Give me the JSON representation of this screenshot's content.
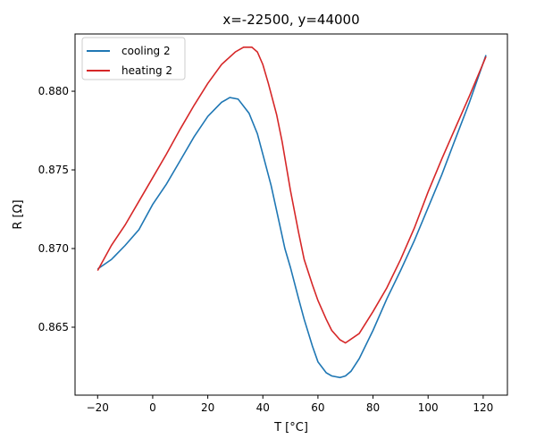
{
  "chart_data": {
    "type": "line",
    "title": "x=-22500, y=44000",
    "xlabel": "T [°C]",
    "ylabel": "R [Ω]",
    "xlim": [
      -28.2,
      128.8
    ],
    "ylim": [
      0.86068,
      0.88364
    ],
    "xticks": [
      -20,
      0,
      20,
      40,
      60,
      80,
      100,
      120
    ],
    "xtick_labels": [
      "−20",
      "0",
      "20",
      "40",
      "60",
      "80",
      "100",
      "120"
    ],
    "yticks": [
      0.865,
      0.87,
      0.875,
      0.88
    ],
    "ytick_labels": [
      "0.865",
      "0.870",
      "0.875",
      "0.880"
    ],
    "grid": false,
    "legend_position": "top-left",
    "series": [
      {
        "name": "cooling 2",
        "color": "#1f77b4",
        "x": [
          -20,
          -15,
          -10,
          -5,
          0,
          5,
          10,
          15,
          20,
          25,
          28,
          31,
          35,
          38,
          40,
          43,
          45,
          48,
          50,
          53,
          55,
          58,
          60,
          63,
          65,
          68,
          70,
          72,
          75,
          80,
          85,
          90,
          95,
          100,
          105,
          110,
          115,
          121
        ],
        "y": [
          0.8687,
          0.8693,
          0.8702,
          0.8712,
          0.8728,
          0.8741,
          0.8756,
          0.8771,
          0.8784,
          0.8793,
          0.8796,
          0.8795,
          0.8786,
          0.8773,
          0.876,
          0.874,
          0.8724,
          0.87,
          0.8688,
          0.8668,
          0.8655,
          0.8638,
          0.8628,
          0.8621,
          0.8619,
          0.8618,
          0.8619,
          0.8622,
          0.863,
          0.8648,
          0.8668,
          0.8686,
          0.8705,
          0.8726,
          0.8747,
          0.877,
          0.8793,
          0.8823
        ]
      },
      {
        "name": "heating 2",
        "color": "#d62728",
        "x": [
          -20,
          -15,
          -10,
          -5,
          0,
          5,
          10,
          15,
          20,
          25,
          30,
          33,
          36,
          38,
          40,
          42,
          45,
          47,
          50,
          53,
          55,
          58,
          60,
          63,
          65,
          68,
          70,
          75,
          80,
          85,
          90,
          95,
          100,
          105,
          110,
          115,
          121
        ],
        "y": [
          0.8686,
          0.8702,
          0.8715,
          0.873,
          0.8745,
          0.876,
          0.8776,
          0.8791,
          0.8805,
          0.8817,
          0.8825,
          0.8828,
          0.8828,
          0.8825,
          0.8817,
          0.8805,
          0.8785,
          0.8768,
          0.8737,
          0.871,
          0.8693,
          0.8677,
          0.8667,
          0.8655,
          0.8648,
          0.8642,
          0.864,
          0.8646,
          0.866,
          0.8675,
          0.8693,
          0.8713,
          0.8736,
          0.8757,
          0.8777,
          0.8797,
          0.8822
        ]
      }
    ]
  }
}
